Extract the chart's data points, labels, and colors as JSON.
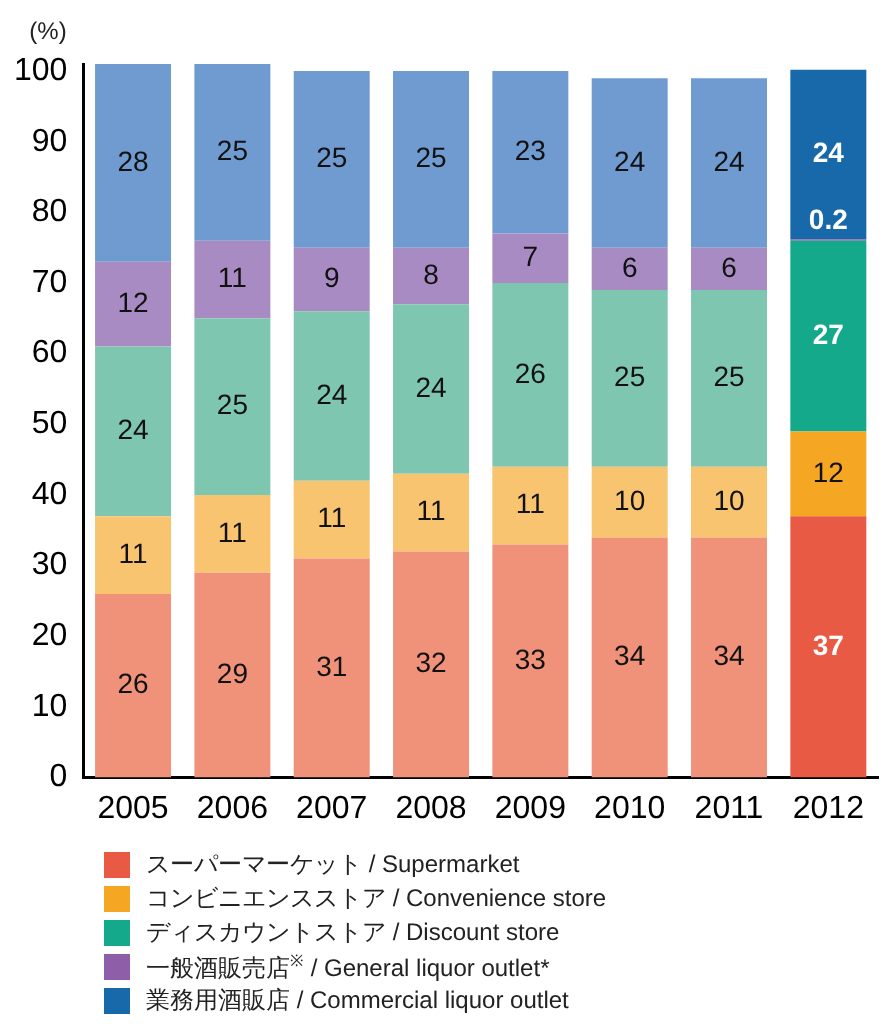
{
  "chart_data": {
    "type": "bar",
    "stacked": true,
    "ylabel": "(%)",
    "categories": [
      "2005",
      "2006",
      "2007",
      "2008",
      "2009",
      "2010",
      "2011",
      "2012"
    ],
    "ylim": [
      0,
      101
    ],
    "yticks": [
      0,
      10,
      20,
      30,
      40,
      50,
      60,
      70,
      80,
      90,
      100
    ],
    "grid": false,
    "legend": "bottom",
    "data_labels": true,
    "series": [
      {
        "name": "スーパーマーケット / Supermarket",
        "color": "#e95a45",
        "colors": [
          "#f0927a",
          "#f0927a",
          "#f0927a",
          "#f0927a",
          "#f0927a",
          "#f0927a",
          "#f0927a",
          "#e95a45"
        ],
        "values": [
          26,
          29,
          31,
          32,
          33,
          34,
          34,
          37
        ]
      },
      {
        "name": "コンビニエンスストア / Convenience store",
        "color": "#f5a623",
        "colors": [
          "#f9c46f",
          "#f9c46f",
          "#f9c46f",
          "#f9c46f",
          "#f9c46f",
          "#f9c46f",
          "#f9c46f",
          "#f5a623"
        ],
        "values": [
          11,
          11,
          11,
          11,
          11,
          10,
          10,
          12
        ]
      },
      {
        "name": "ディスカウントストア / Discount store",
        "color": "#13a98a",
        "colors": [
          "#7fc6b0",
          "#7fc6b0",
          "#7fc6b0",
          "#7fc6b0",
          "#7fc6b0",
          "#7fc6b0",
          "#7fc6b0",
          "#13a98a"
        ],
        "values": [
          24,
          25,
          24,
          24,
          26,
          25,
          25,
          27
        ]
      },
      {
        "name": "一般酒販売店$^{※}$ / General liquor outlet*",
        "color": "#8e5ea8",
        "colors": [
          "#a98bc4",
          "#a98bc4",
          "#a98bc4",
          "#a98bc4",
          "#a98bc4",
          "#a98bc4",
          "#a98bc4",
          "#8e5ea8"
        ],
        "values": [
          12,
          11,
          9,
          8,
          7,
          6,
          6,
          0.2
        ]
      },
      {
        "name": "業務用酒販店 / Commercial liquor outlet",
        "color": "#1769aa",
        "colors": [
          "#6f9bd0",
          "#6f9bd0",
          "#6f9bd0",
          "#6f9bd0",
          "#6f9bd0",
          "#6f9bd0",
          "#6f9bd0",
          "#1769aa"
        ],
        "values": [
          28,
          25,
          25,
          25,
          23,
          24,
          24,
          24
        ]
      }
    ]
  }
}
